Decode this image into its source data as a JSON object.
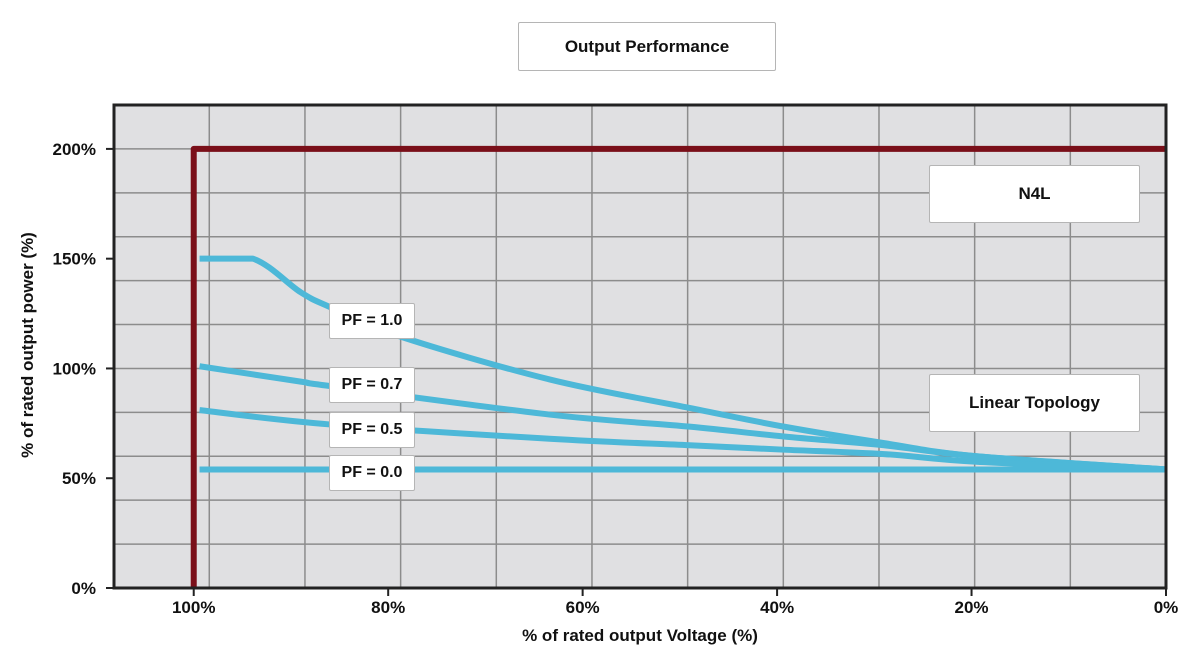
{
  "chart_data": {
    "type": "line",
    "title": "Output Performance",
    "xlabel": "% of rated output Voltage (%)",
    "ylabel": "% of rated output power (%)",
    "xlim": [
      108.2,
      0
    ],
    "x_reversed": true,
    "ylim": [
      0,
      220
    ],
    "grid": true,
    "x_ticks": [
      100,
      80,
      60,
      40,
      20,
      0
    ],
    "x_tick_labels": [
      "100%",
      "80%",
      "60%",
      "40%",
      "20%",
      "0%"
    ],
    "y_ticks": [
      0,
      50,
      100,
      150,
      200
    ],
    "y_tick_labels": [
      "0%",
      "50%",
      "100%",
      "150%",
      "200%"
    ],
    "annotations": [
      "N4L",
      "Linear Topology"
    ],
    "series": [
      {
        "name": "",
        "color": "#7a0f19",
        "role": "limit",
        "x": [
          100,
          100,
          0
        ],
        "y": [
          0,
          200,
          200
        ]
      },
      {
        "name": "PF = 1.0",
        "color": "#4db8d8",
        "x": [
          99.4,
          93.9,
          89,
          86,
          78.8,
          63.4,
          49,
          39.3,
          29,
          19.5,
          0
        ],
        "y": [
          150,
          150,
          134.7,
          128,
          114.6,
          95,
          82,
          73.5,
          66,
          60,
          54
        ]
      },
      {
        "name": "PF = 0.7",
        "color": "#4db8d8",
        "x": [
          99.4,
          89,
          86,
          63.4,
          49,
          39.3,
          29,
          19.5,
          0
        ],
        "y": [
          101,
          94,
          92,
          79,
          73.5,
          69,
          65,
          60,
          54
        ]
      },
      {
        "name": "PF = 0.5",
        "color": "#4db8d8",
        "x": [
          99.4,
          86,
          63.4,
          49,
          39.3,
          29,
          19.5,
          0
        ],
        "y": [
          81,
          74.5,
          68,
          65,
          63,
          61,
          57.5,
          54
        ]
      },
      {
        "name": "PF = 0.0",
        "color": "#4db8d8",
        "x": [
          99.4,
          0
        ],
        "y": [
          54,
          54
        ]
      }
    ]
  }
}
